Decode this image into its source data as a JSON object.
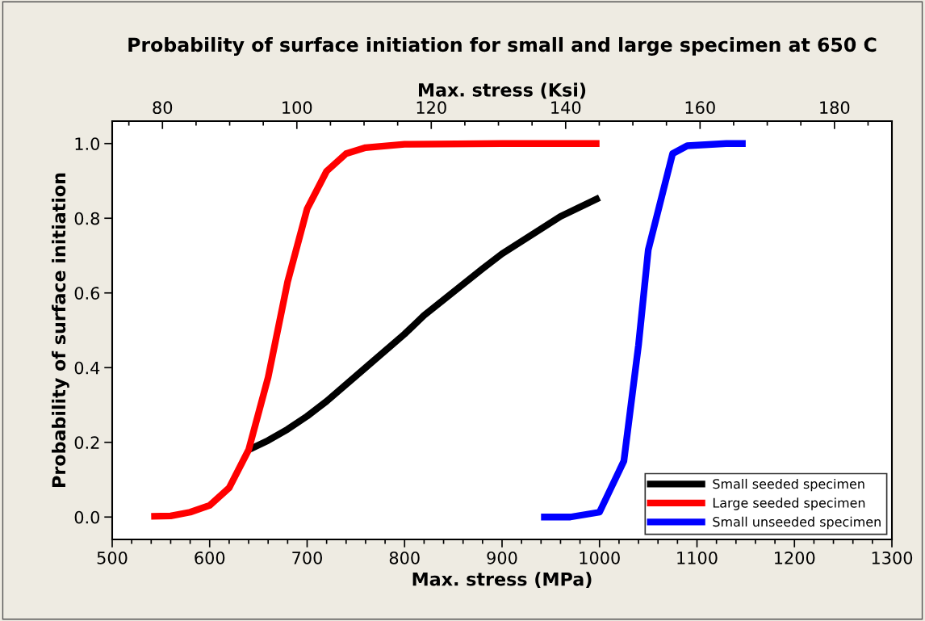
{
  "chart_data": {
    "type": "line",
    "title": "Probability of surface initiation for small and large specimen at 650 C",
    "xlabel": "Max. stress (MPa)",
    "x2label": "Max. stress (Ksi)",
    "ylabel": "Probability of surface initiation",
    "series": [
      {
        "name": "Small seeded specimen",
        "color": "#000000",
        "x": [
          640,
          660,
          680,
          700,
          720,
          760,
          800,
          820,
          880,
          900,
          960,
          1000
        ],
        "values": [
          0.18,
          0.205,
          0.235,
          0.27,
          0.31,
          0.4,
          0.49,
          0.54,
          0.665,
          0.705,
          0.805,
          0.855
        ]
      },
      {
        "name": "Large seeded specimen",
        "color": "#ff0000",
        "x": [
          540,
          560,
          580,
          600,
          620,
          640,
          660,
          680,
          700,
          720,
          740,
          760,
          800,
          900,
          1000
        ],
        "values": [
          0.002,
          0.003,
          0.013,
          0.031,
          0.078,
          0.18,
          0.374,
          0.63,
          0.825,
          0.926,
          0.973,
          0.989,
          0.998,
          1.0,
          1.0
        ]
      },
      {
        "name": "Small unseeded specimen",
        "color": "#0000ff",
        "x": [
          940,
          970,
          1000,
          1025,
          1040,
          1050,
          1075,
          1090,
          1130,
          1150
        ],
        "values": [
          0,
          0,
          0.013,
          0.15,
          0.46,
          0.715,
          0.973,
          0.994,
          1.0,
          1.0
        ]
      }
    ],
    "xlim": [
      500,
      1300
    ],
    "xticks": [
      500,
      {
        "value": 520,
        "label": null
      },
      {
        "value": 540,
        "label": null
      },
      {
        "value": 560,
        "label": null
      },
      {
        "value": 580,
        "label": null
      },
      600,
      {
        "value": 620,
        "label": null
      },
      {
        "value": 640,
        "label": null
      },
      {
        "value": 660,
        "label": null
      },
      {
        "value": 680,
        "label": null
      },
      700,
      {
        "value": 720,
        "label": null
      },
      {
        "value": 740,
        "label": null
      },
      {
        "value": 760,
        "label": null
      },
      {
        "value": 780,
        "label": null
      },
      800,
      {
        "value": 820,
        "label": null
      },
      {
        "value": 840,
        "label": null
      },
      {
        "value": 860,
        "label": null
      },
      {
        "value": 880,
        "label": null
      },
      900,
      {
        "value": 920,
        "label": null
      },
      {
        "value": 940,
        "label": null
      },
      {
        "value": 960,
        "label": null
      },
      {
        "value": 980,
        "label": null
      },
      1000,
      {
        "value": 1020,
        "label": null
      },
      {
        "value": 1040,
        "label": null
      },
      {
        "value": 1060,
        "label": null
      },
      {
        "value": 1080,
        "label": null
      },
      1100,
      {
        "value": 1120,
        "label": null
      },
      {
        "value": 1140,
        "label": null
      },
      {
        "value": 1160,
        "label": null
      },
      {
        "value": 1180,
        "label": null
      },
      1200,
      {
        "value": 1220,
        "label": null
      },
      {
        "value": 1240,
        "label": null
      },
      {
        "value": 1260,
        "label": null
      },
      {
        "value": 1280,
        "label": null
      },
      1300
    ],
    "x2lim": [
      72.52,
      188.55
    ],
    "x2ticks": [
      {
        "value": 75,
        "label": null
      },
      80,
      {
        "value": 85,
        "label": null
      },
      {
        "value": 90,
        "label": null
      },
      {
        "value": 95,
        "label": null
      },
      100,
      {
        "value": 105,
        "label": null
      },
      {
        "value": 110,
        "label": null
      },
      {
        "value": 115,
        "label": null
      },
      120,
      {
        "value": 125,
        "label": null
      },
      {
        "value": 130,
        "label": null
      },
      {
        "value": 135,
        "label": null
      },
      140,
      {
        "value": 145,
        "label": null
      },
      {
        "value": 150,
        "label": null
      },
      {
        "value": 155,
        "label": null
      },
      160,
      {
        "value": 165,
        "label": null
      },
      {
        "value": 170,
        "label": null
      },
      {
        "value": 175,
        "label": null
      },
      180,
      {
        "value": 185,
        "label": null
      }
    ],
    "ylim": [
      -0.06,
      1.06
    ],
    "yticks": [
      {
        "value": 0,
        "label": "0.0"
      },
      {
        "value": 0.2,
        "label": "0.2"
      },
      {
        "value": 0.4,
        "label": "0.4"
      },
      {
        "value": 0.6,
        "label": "0.6"
      },
      {
        "value": 0.8,
        "label": "0.8"
      },
      {
        "value": 1.0,
        "label": "1.0"
      }
    ],
    "grid": false,
    "legend": "bottom right",
    "line_style": "solid",
    "marker": "none"
  }
}
